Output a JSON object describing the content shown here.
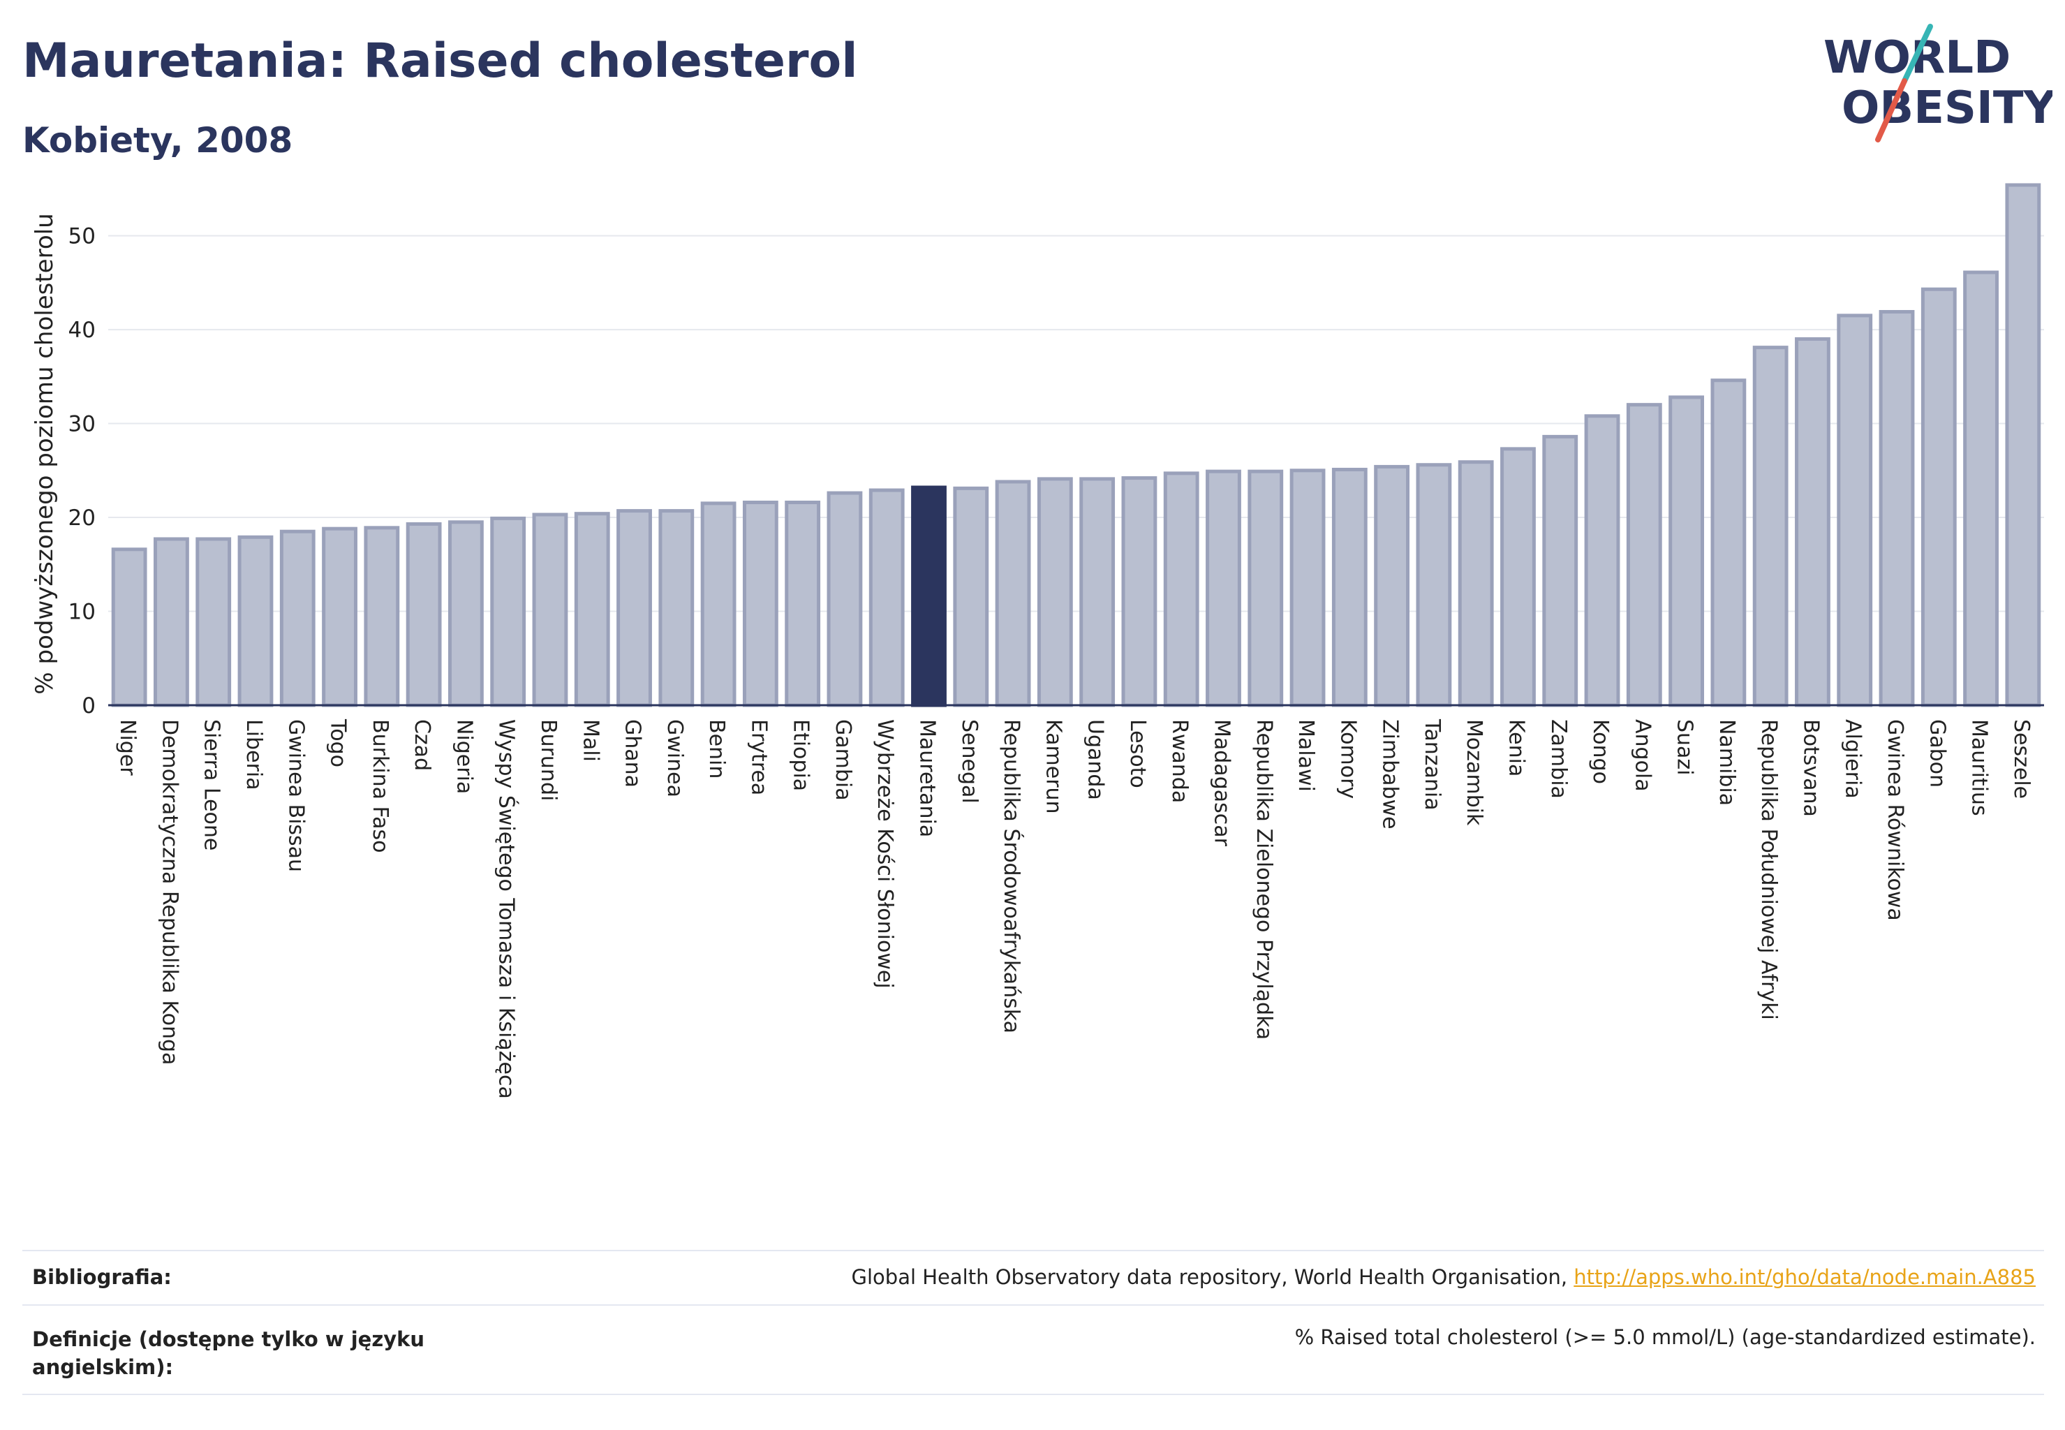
{
  "header": {
    "title": "Mauretania: Raised cholesterol",
    "subtitle": "Kobiety, 2008"
  },
  "logo": {
    "line1": "WORLD",
    "line2": "OBESITY",
    "colors": {
      "text": "#2b355e",
      "slash_teal": "#37b5b5",
      "slash_red": "#e25a48"
    }
  },
  "chart_data": {
    "type": "bar",
    "title": "",
    "xlabel": "",
    "ylabel": "% podwyższonego poziomu cholesterolu",
    "ylim": [
      0,
      58
    ],
    "yticks": [
      0,
      10,
      20,
      30,
      40,
      50
    ],
    "grid": true,
    "highlight": "Mauretania",
    "colors": {
      "bar": "#b9bfd0",
      "bar_edge": "#9aa1ba",
      "highlight": "#2b355e",
      "grid": "#e6e8ee",
      "axis": "#2b355e"
    },
    "categories": [
      "Niger",
      "Demokratyczna Republika Konga",
      "Sierra Leone",
      "Liberia",
      "Gwinea Bissau",
      "Togo",
      "Burkina Faso",
      "Czad",
      "Nigeria",
      "Wyspy Świętego Tomasza i Książęca",
      "Burundi",
      "Mali",
      "Ghana",
      "Gwinea",
      "Benin",
      "Erytrea",
      "Etiopia",
      "Gambia",
      "Wybrzeże Kości Słoniowej",
      "Mauretania",
      "Senegal",
      "Republika Środowoafrykańska",
      "Kamerun",
      "Uganda",
      "Lesoto",
      "Rwanda",
      "Madagascar",
      "Republika Zielonego Przylądka",
      "Malawi",
      "Komory",
      "Zimbabwe",
      "Tanzania",
      "Mozambik",
      "Kenia",
      "Zambia",
      "Kongo",
      "Angola",
      "Suazi",
      "Namibia",
      "Republika Południowej Afryki",
      "Botsvana",
      "Algieria",
      "Gwinea Równikowa",
      "Gabon",
      "Mauritius",
      "Seszele"
    ],
    "values": [
      16.6,
      17.7,
      17.7,
      17.9,
      18.5,
      18.8,
      18.9,
      19.3,
      19.5,
      19.9,
      20.3,
      20.4,
      20.7,
      20.7,
      21.5,
      21.6,
      21.6,
      22.6,
      22.9,
      23.2,
      23.1,
      23.8,
      24.1,
      24.1,
      24.2,
      24.7,
      24.9,
      24.9,
      25.0,
      25.1,
      25.4,
      25.6,
      25.9,
      27.3,
      28.6,
      30.8,
      32.0,
      32.8,
      34.6,
      38.1,
      39.0,
      41.5,
      41.9,
      44.3,
      46.1,
      55.4
    ]
  },
  "footer": {
    "bibliography_label": "Bibliografia:",
    "bibliography_text": "Global Health Observatory data repository, World Health Organisation, ",
    "bibliography_link": "http://apps.who.int/gho/data/node.main.A885",
    "definition_label_line1": "Definicje (dostępne tylko w języku",
    "definition_label_line2": "angielskim):",
    "definition_text": "% Raised total cholesterol (>= 5.0 mmol/L) (age-standardized estimate)."
  }
}
